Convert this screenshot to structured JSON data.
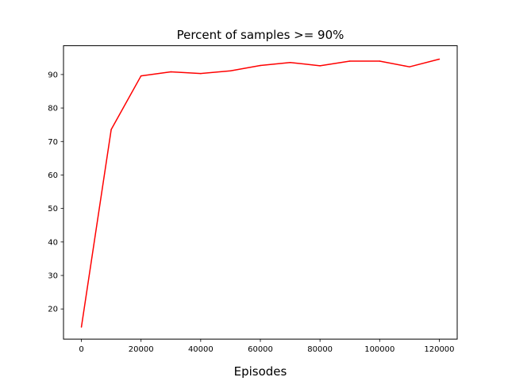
{
  "chart_data": {
    "type": "line",
    "title": "Percent of samples >= 90%",
    "xlabel": "Episodes",
    "ylabel": "",
    "xlim": [
      -6000,
      126000
    ],
    "ylim": [
      11,
      98.6
    ],
    "xticks": [
      0,
      20000,
      40000,
      60000,
      80000,
      100000,
      120000
    ],
    "yticks": [
      20,
      30,
      40,
      50,
      60,
      70,
      80,
      90
    ],
    "grid": false,
    "series": [
      {
        "color": "#ff0000",
        "x": [
          0,
          10000,
          20000,
          30000,
          40000,
          50000,
          60000,
          70000,
          80000,
          90000,
          100000,
          110000,
          120000
        ],
        "y": [
          14.6,
          73.6,
          89.6,
          90.8,
          90.3,
          91.1,
          92.7,
          93.6,
          92.6,
          94.0,
          94.0,
          92.3,
          94.6
        ]
      }
    ]
  }
}
